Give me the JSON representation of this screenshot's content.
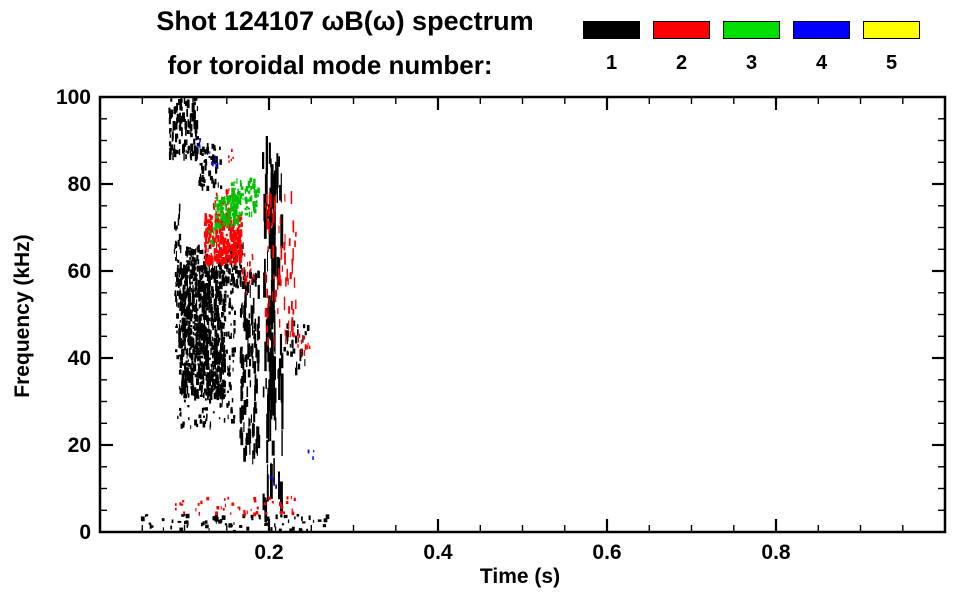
{
  "chart_data": {
    "type": "scatter",
    "title": "Shot 124107 ωB(ω) spectrum",
    "subtitle": "for toroidal mode number:",
    "xlabel": "Time (s)",
    "ylabel": "Frequency (kHz)",
    "xlim": [
      0,
      1.0
    ],
    "ylim": [
      0,
      100
    ],
    "x_ticks": [
      0.2,
      0.4,
      0.6,
      0.8
    ],
    "x_tick_labels": [
      "0.2",
      "0.4",
      "0.6",
      "0.8"
    ],
    "y_ticks": [
      0,
      20,
      40,
      60,
      80,
      100
    ],
    "y_tick_labels": [
      "0",
      "20",
      "40",
      "60",
      "80",
      "100"
    ],
    "x_minor_step": 0.05,
    "y_minor_step": 5,
    "grid": false,
    "legend_position": "top-right",
    "legend": [
      {
        "label": "1",
        "color": "#000000"
      },
      {
        "label": "2",
        "color": "#ff0000"
      },
      {
        "label": "3",
        "color": "#00dd00"
      },
      {
        "label": "4",
        "color": "#0000ff"
      },
      {
        "label": "5",
        "color": "#ffff00"
      }
    ],
    "series": [
      {
        "mode": 1,
        "color": "#000000",
        "clusters": [
          {
            "t": [
              0.082,
              0.117
            ],
            "f": [
              86,
              100
            ],
            "n": 110,
            "w": [
              1,
              3
            ],
            "h": [
              3,
              10
            ]
          },
          {
            "t": [
              0.118,
              0.145
            ],
            "f": [
              79,
              89
            ],
            "n": 55,
            "w": [
              1,
              3
            ],
            "h": [
              2,
              7
            ]
          },
          {
            "t": [
              0.088,
              0.096
            ],
            "f": [
              52,
              75
            ],
            "n": 45,
            "w": [
              1,
              2
            ],
            "h": [
              3,
              9
            ]
          },
          {
            "t": [
              0.094,
              0.148
            ],
            "f": [
              31,
              61
            ],
            "n": 750,
            "w": [
              1,
              3
            ],
            "h": [
              2,
              9
            ]
          },
          {
            "t": [
              0.09,
              0.16
            ],
            "f": [
              24,
              63
            ],
            "n": 260,
            "w": [
              1,
              3
            ],
            "h": [
              2,
              6
            ]
          },
          {
            "t": [
              0.148,
              0.17
            ],
            "f": [
              56,
              66
            ],
            "n": 70,
            "w": [
              1,
              3
            ],
            "h": [
              2,
              7
            ]
          },
          {
            "t": [
              0.1,
              0.13
            ],
            "f": [
              61,
              66
            ],
            "n": 40,
            "w": [
              1,
              3
            ],
            "h": [
              2,
              6
            ]
          },
          {
            "t": [
              0.166,
              0.188
            ],
            "f": [
              17,
              60
            ],
            "n": 130,
            "w": [
              1,
              3
            ],
            "h": [
              4,
              16
            ]
          },
          {
            "t": [
              0.193,
              0.216
            ],
            "f": [
              4,
              88
            ],
            "n": 80,
            "w": [
              1,
              3
            ],
            "h": [
              8,
              38
            ]
          },
          {
            "t": [
              0.2,
              0.208
            ],
            "f": [
              25,
              85
            ],
            "n": 35,
            "w": [
              2,
              3
            ],
            "h": [
              12,
              45
            ]
          },
          {
            "t": [
              0.218,
              0.248
            ],
            "f": [
              36,
              48
            ],
            "n": 28,
            "w": [
              1,
              3
            ],
            "h": [
              3,
              8
            ]
          },
          {
            "t": [
              0.05,
              0.27
            ],
            "f": [
              0,
              4
            ],
            "n": 75,
            "w": [
              1,
              4
            ],
            "h": [
              2,
              5
            ]
          }
        ]
      },
      {
        "mode": 2,
        "color": "#ff0000",
        "clusters": [
          {
            "t": [
              0.124,
              0.168
            ],
            "f": [
              62,
              73
            ],
            "n": 270,
            "w": [
              1,
              3
            ],
            "h": [
              2,
              8
            ]
          },
          {
            "t": [
              0.134,
              0.162
            ],
            "f": [
              73,
              79
            ],
            "n": 35,
            "w": [
              1,
              2
            ],
            "h": [
              2,
              5
            ]
          },
          {
            "t": [
              0.152,
              0.158
            ],
            "f": [
              85,
              88
            ],
            "n": 5,
            "w": [
              1,
              2
            ],
            "h": [
              2,
              4
            ]
          },
          {
            "t": [
              0.168,
              0.182
            ],
            "f": [
              55,
              64
            ],
            "n": 18,
            "w": [
              1,
              2
            ],
            "h": [
              2,
              6
            ]
          },
          {
            "t": [
              0.196,
              0.232
            ],
            "f": [
              43,
              77
            ],
            "n": 75,
            "w": [
              1,
              2
            ],
            "h": [
              4,
              14
            ]
          },
          {
            "t": [
              0.234,
              0.25
            ],
            "f": [
              39,
              46
            ],
            "n": 14,
            "w": [
              1,
              2
            ],
            "h": [
              2,
              6
            ]
          },
          {
            "t": [
              0.088,
              0.236
            ],
            "f": [
              4,
              8
            ],
            "n": 48,
            "w": [
              1,
              3
            ],
            "h": [
              2,
              4
            ]
          }
        ]
      },
      {
        "mode": 3,
        "color": "#00c000",
        "clusters": [
          {
            "t": [
              0.136,
              0.164
            ],
            "f": [
              70,
              77
            ],
            "n": 95,
            "w": [
              1,
              3
            ],
            "h": [
              2,
              6
            ]
          },
          {
            "t": [
              0.156,
              0.188
            ],
            "f": [
              73,
              81
            ],
            "n": 85,
            "w": [
              1,
              3
            ],
            "h": [
              2,
              6
            ]
          },
          {
            "t": [
              0.127,
              0.136
            ],
            "f": [
              66,
              70
            ],
            "n": 10,
            "w": [
              1,
              2
            ],
            "h": [
              2,
              4
            ]
          }
        ]
      },
      {
        "mode": 4,
        "color": "#0000ff",
        "clusters": [
          {
            "t": [
              0.116,
              0.126
            ],
            "f": [
              87,
              91
            ],
            "n": 4,
            "w": [
              1,
              2
            ],
            "h": [
              2,
              5
            ]
          },
          {
            "t": [
              0.128,
              0.138
            ],
            "f": [
              84,
              88
            ],
            "n": 6,
            "w": [
              1,
              2
            ],
            "h": [
              2,
              5
            ]
          },
          {
            "t": [
              0.2,
              0.212
            ],
            "f": [
              10,
              14
            ],
            "n": 4,
            "w": [
              1,
              2
            ],
            "h": [
              2,
              5
            ]
          },
          {
            "t": [
              0.246,
              0.258
            ],
            "f": [
              16,
              19
            ],
            "n": 3,
            "w": [
              1,
              2
            ],
            "h": [
              2,
              4
            ]
          }
        ]
      },
      {
        "mode": 5,
        "color": "#ffff00",
        "clusters": []
      }
    ]
  }
}
